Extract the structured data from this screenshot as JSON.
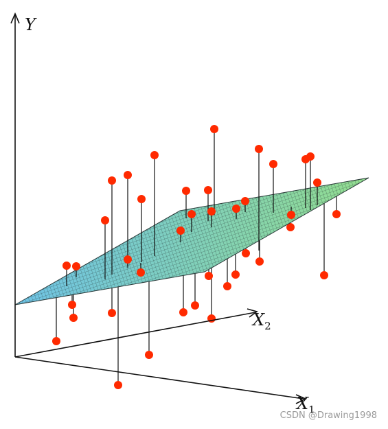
{
  "axes": {
    "y_label": "Y",
    "x2_label": "X",
    "x2_subscript": "2",
    "x1_label": "X",
    "x1_subscript": "1"
  },
  "colors": {
    "point": "#ff2a00",
    "plane_left": "#6ec3e6",
    "plane_right": "#93dd8f",
    "mesh": "#1f2a2a",
    "axis": "#111111",
    "stem": "#111111"
  },
  "watermark": "CSDN @Drawing1998"
}
